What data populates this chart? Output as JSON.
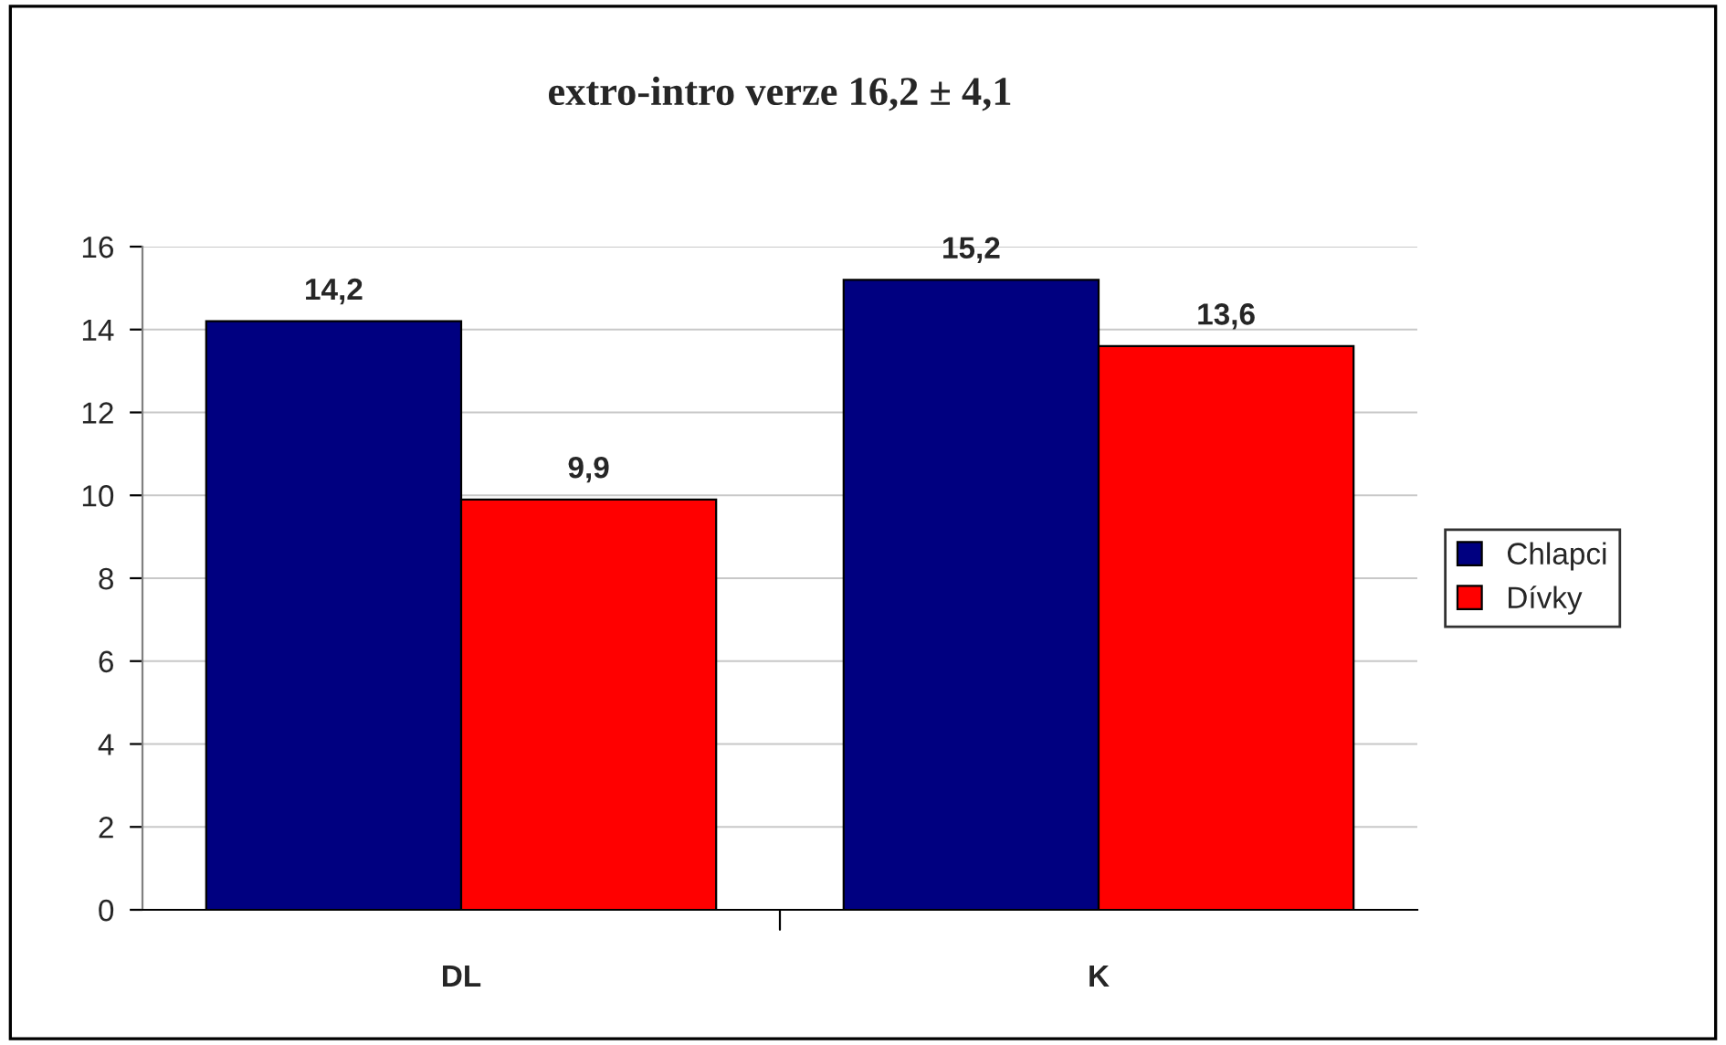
{
  "chart_data": {
    "type": "bar",
    "title": "extro-intro verze 16,2 ± 4,1",
    "categories": [
      "DL",
      "K"
    ],
    "series": [
      {
        "name": "Chlapci",
        "color": "#000080",
        "values": [
          14.2,
          15.2
        ],
        "value_labels": [
          "14,2",
          "15,2"
        ]
      },
      {
        "name": "Dívky",
        "color": "#ff0000",
        "values": [
          9.9,
          13.6
        ],
        "value_labels": [
          "9,9",
          "13,6"
        ]
      }
    ],
    "ylim": [
      0,
      16
    ],
    "yticks": [
      0,
      2,
      4,
      6,
      8,
      10,
      12,
      14,
      16
    ],
    "grid": "y",
    "legend": "right"
  }
}
